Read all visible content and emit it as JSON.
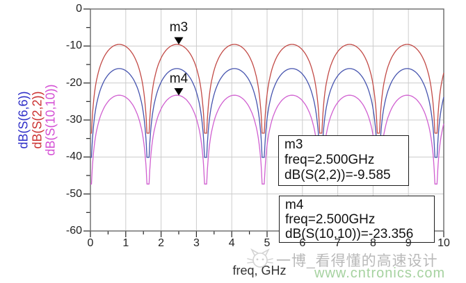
{
  "chart_data": {
    "type": "line",
    "title": "",
    "xlabel": "freq, GHz",
    "x_axis": {
      "min": 0,
      "max": 10,
      "major_step": 1,
      "minor_step": 0.5,
      "tick_labels": [
        "0",
        "1",
        "2",
        "3",
        "4",
        "5",
        "6",
        "7",
        "8",
        "9",
        "10"
      ]
    },
    "y_axis": {
      "min": -60,
      "max": 0,
      "major_step": 10,
      "minor_step": 5,
      "tick_labels": [
        "0",
        "-10",
        "-20",
        "-30",
        "-40",
        "-50",
        "-60"
      ]
    },
    "grid": {
      "show": true,
      "color": "#cccccc"
    },
    "model": {
      "description": "Periodic return-loss ripple; each curve: dB(f) = peak_db + max(20*log10(|sin(pi*f/null_period_ghz)|), null_floor_rel_db)",
      "null_period_ghz": 1.63,
      "null_floor_rel_db": -24,
      "null_freqs_ghz": [
        0,
        1.63,
        3.26,
        4.89,
        6.52,
        8.15,
        9.78
      ],
      "peak_freqs_ghz": [
        0.82,
        2.45,
        4.08,
        5.71,
        7.34,
        8.97
      ]
    },
    "series": [
      {
        "name": "dB(S(2,2))",
        "color": "#c24a46",
        "label_color": "#cc3333",
        "peak_db": -9.56,
        "null_db": -33.56
      },
      {
        "name": "dB(S(6,6))",
        "color": "#4553ae",
        "label_color": "#2f2fc8",
        "peak_db": -16.1,
        "null_db": -40.1
      },
      {
        "name": "dB(S(10,10))",
        "color": "#d05fd0",
        "label_color": "#d44fd4",
        "peak_db": -23.3,
        "null_db": -47.3
      }
    ],
    "markers": [
      {
        "id": "m3",
        "freq_ghz": 2.5,
        "value_db": -9.585,
        "series": "dB(S(2,2))",
        "box_lines": [
          "m3",
          "freq=2.500GHz",
          "dB(S(2,2))=-9.585"
        ]
      },
      {
        "id": "m4",
        "freq_ghz": 2.5,
        "value_db": -23.356,
        "series": "dB(S(10,10))",
        "box_lines": [
          "m4",
          "freq=2.500GHz",
          "dB(S(10,10))=-23.356"
        ]
      }
    ],
    "legend_position": "rotated series labels left of y-axis"
  },
  "watermark": {
    "text": "一博_看得懂的高速设计",
    "url": "www.cntronics.com",
    "text_color": "#b9b9b9",
    "url_color": "#a6d2a0",
    "logo": "cat-doodle"
  }
}
